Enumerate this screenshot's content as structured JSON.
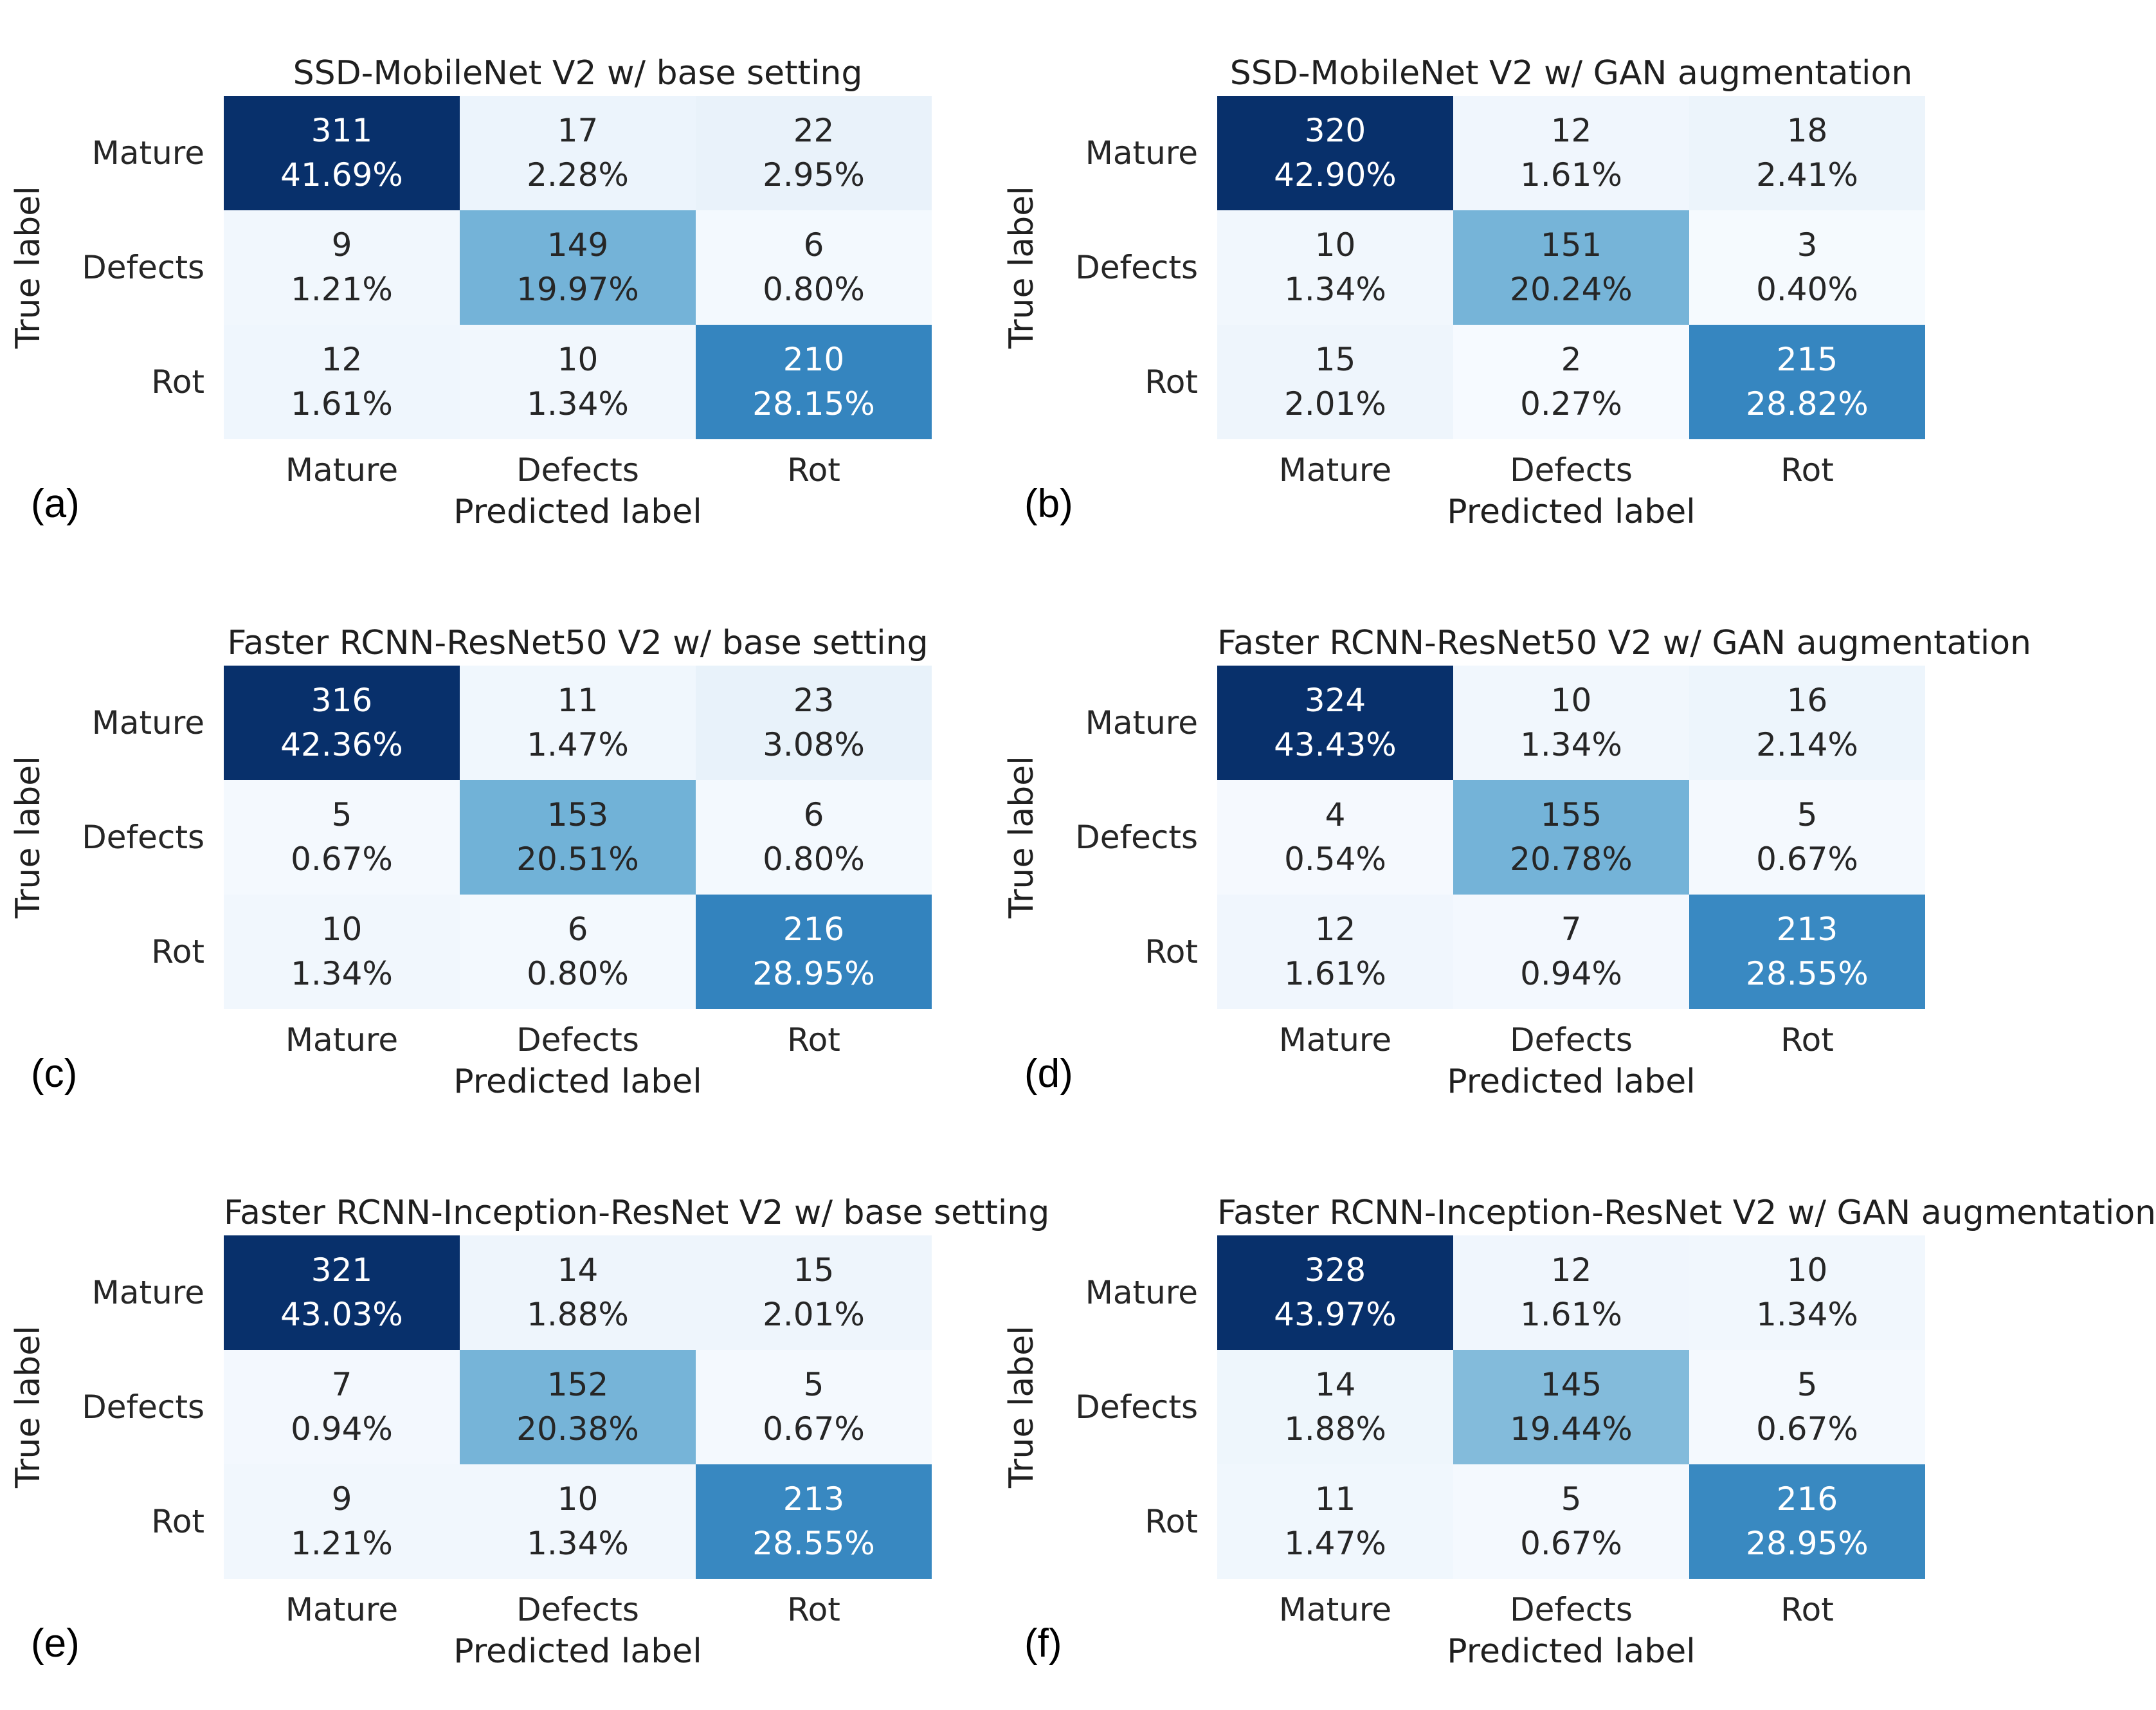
{
  "figure": {
    "background": "#ffffff",
    "row_axis_label": "True label",
    "col_axis_label": "Predicted label",
    "classes": [
      "Mature",
      "Defects",
      "Rot"
    ],
    "palette": {
      "colormap": "Blues",
      "min_color": "#f7fbff",
      "mid_color": "#6baed6",
      "max_color": "#08306b",
      "cell_text_dark": "#262626",
      "cell_text_light": "#ffffff"
    }
  },
  "chart_data": [
    {
      "type": "heatmap",
      "panel": "(a)",
      "title": "SSD-MobileNet V2 w/ base setting",
      "xlabel": "Predicted label",
      "ylabel": "True label",
      "x_categories": [
        "Mature",
        "Defects",
        "Rot"
      ],
      "y_categories": [
        "Mature",
        "Defects",
        "Rot"
      ],
      "counts": [
        [
          311,
          17,
          22
        ],
        [
          9,
          149,
          6
        ],
        [
          12,
          10,
          210
        ]
      ],
      "percents": [
        [
          "41.69%",
          "2.28%",
          "2.95%"
        ],
        [
          "1.21%",
          "19.97%",
          "0.80%"
        ],
        [
          "1.61%",
          "1.34%",
          "28.15%"
        ]
      ]
    },
    {
      "type": "heatmap",
      "panel": "(b)",
      "title": "SSD-MobileNet V2 w/ GAN augmentation",
      "xlabel": "Predicted label",
      "ylabel": "True label",
      "x_categories": [
        "Mature",
        "Defects",
        "Rot"
      ],
      "y_categories": [
        "Mature",
        "Defects",
        "Rot"
      ],
      "counts": [
        [
          320,
          12,
          18
        ],
        [
          10,
          151,
          3
        ],
        [
          15,
          2,
          215
        ]
      ],
      "percents": [
        [
          "42.90%",
          "1.61%",
          "2.41%"
        ],
        [
          "1.34%",
          "20.24%",
          "0.40%"
        ],
        [
          "2.01%",
          "0.27%",
          "28.82%"
        ]
      ]
    },
    {
      "type": "heatmap",
      "panel": "(c)",
      "title": "Faster RCNN-ResNet50 V2 w/ base setting",
      "xlabel": "Predicted label",
      "ylabel": "True label",
      "x_categories": [
        "Mature",
        "Defects",
        "Rot"
      ],
      "y_categories": [
        "Mature",
        "Defects",
        "Rot"
      ],
      "counts": [
        [
          316,
          11,
          23
        ],
        [
          5,
          153,
          6
        ],
        [
          10,
          6,
          216
        ]
      ],
      "percents": [
        [
          "42.36%",
          "1.47%",
          "3.08%"
        ],
        [
          "0.67%",
          "20.51%",
          "0.80%"
        ],
        [
          "1.34%",
          "0.80%",
          "28.95%"
        ]
      ]
    },
    {
      "type": "heatmap",
      "panel": "(d)",
      "title": "Faster RCNN-ResNet50 V2 w/ GAN augmentation",
      "xlabel": "Predicted label",
      "ylabel": "True label",
      "x_categories": [
        "Mature",
        "Defects",
        "Rot"
      ],
      "y_categories": [
        "Mature",
        "Defects",
        "Rot"
      ],
      "counts": [
        [
          324,
          10,
          16
        ],
        [
          4,
          155,
          5
        ],
        [
          12,
          7,
          213
        ]
      ],
      "percents": [
        [
          "43.43%",
          "1.34%",
          "2.14%"
        ],
        [
          "0.54%",
          "20.78%",
          "0.67%"
        ],
        [
          "1.61%",
          "0.94%",
          "28.55%"
        ]
      ]
    },
    {
      "type": "heatmap",
      "panel": "(e)",
      "title": "Faster RCNN-Inception-ResNet V2 w/ base setting",
      "xlabel": "Predicted label",
      "ylabel": "True label",
      "x_categories": [
        "Mature",
        "Defects",
        "Rot"
      ],
      "y_categories": [
        "Mature",
        "Defects",
        "Rot"
      ],
      "counts": [
        [
          321,
          14,
          15
        ],
        [
          7,
          152,
          5
        ],
        [
          9,
          10,
          213
        ]
      ],
      "percents": [
        [
          "43.03%",
          "1.88%",
          "2.01%"
        ],
        [
          "0.94%",
          "20.38%",
          "0.67%"
        ],
        [
          "1.21%",
          "1.34%",
          "28.55%"
        ]
      ]
    },
    {
      "type": "heatmap",
      "panel": "(f)",
      "title": "Faster RCNN-Inception-ResNet V2 w/ GAN augmentation",
      "xlabel": "Predicted label",
      "ylabel": "True label",
      "x_categories": [
        "Mature",
        "Defects",
        "Rot"
      ],
      "y_categories": [
        "Mature",
        "Defects",
        "Rot"
      ],
      "counts": [
        [
          328,
          12,
          10
        ],
        [
          14,
          145,
          5
        ],
        [
          11,
          5,
          216
        ]
      ],
      "percents": [
        [
          "43.97%",
          "1.61%",
          "1.34%"
        ],
        [
          "1.88%",
          "19.44%",
          "0.67%"
        ],
        [
          "1.47%",
          "0.67%",
          "28.95%"
        ]
      ]
    }
  ]
}
